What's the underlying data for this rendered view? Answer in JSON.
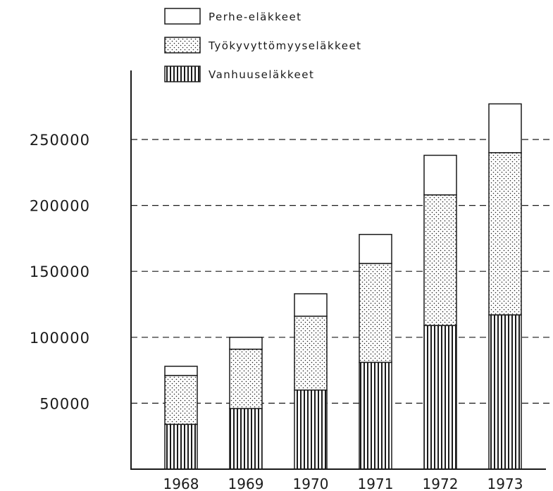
{
  "chart_data": {
    "type": "bar",
    "stacked": true,
    "categories": [
      "1968",
      "1969",
      "1970",
      "1971",
      "1972",
      "1973"
    ],
    "series": [
      {
        "name": "Vanhuuseläkkeet",
        "pattern": "vertical-lines",
        "values": [
          34000,
          46000,
          60000,
          81000,
          109000,
          117000
        ]
      },
      {
        "name": "Työkyvyttömyyseläkkeet",
        "pattern": "dots",
        "values": [
          37000,
          45000,
          56000,
          75000,
          99000,
          123000
        ]
      },
      {
        "name": "Perhe-eläkkeet",
        "pattern": "blank",
        "values": [
          7000,
          9000,
          17000,
          22000,
          30000,
          37000
        ]
      }
    ],
    "ylim": [
      0,
      280000
    ],
    "yticks": [
      {
        "value": 50000,
        "label": "50000"
      },
      {
        "value": 100000,
        "label": "100000"
      },
      {
        "value": 150000,
        "label": "150000"
      },
      {
        "value": 200000,
        "label": "200000"
      },
      {
        "value": 250000,
        "label": "250000"
      }
    ],
    "grid": "horizontal-dashed",
    "legend_position": "top-center",
    "legend_order": [
      "Perhe-eläkkeet",
      "Työkyvyttömyyseläkkeet",
      "Vanhuuseläkkeet"
    ],
    "title": "",
    "xlabel": "",
    "ylabel": ""
  },
  "colors": {
    "ink": "#1a1a1a",
    "background": "#ffffff"
  }
}
